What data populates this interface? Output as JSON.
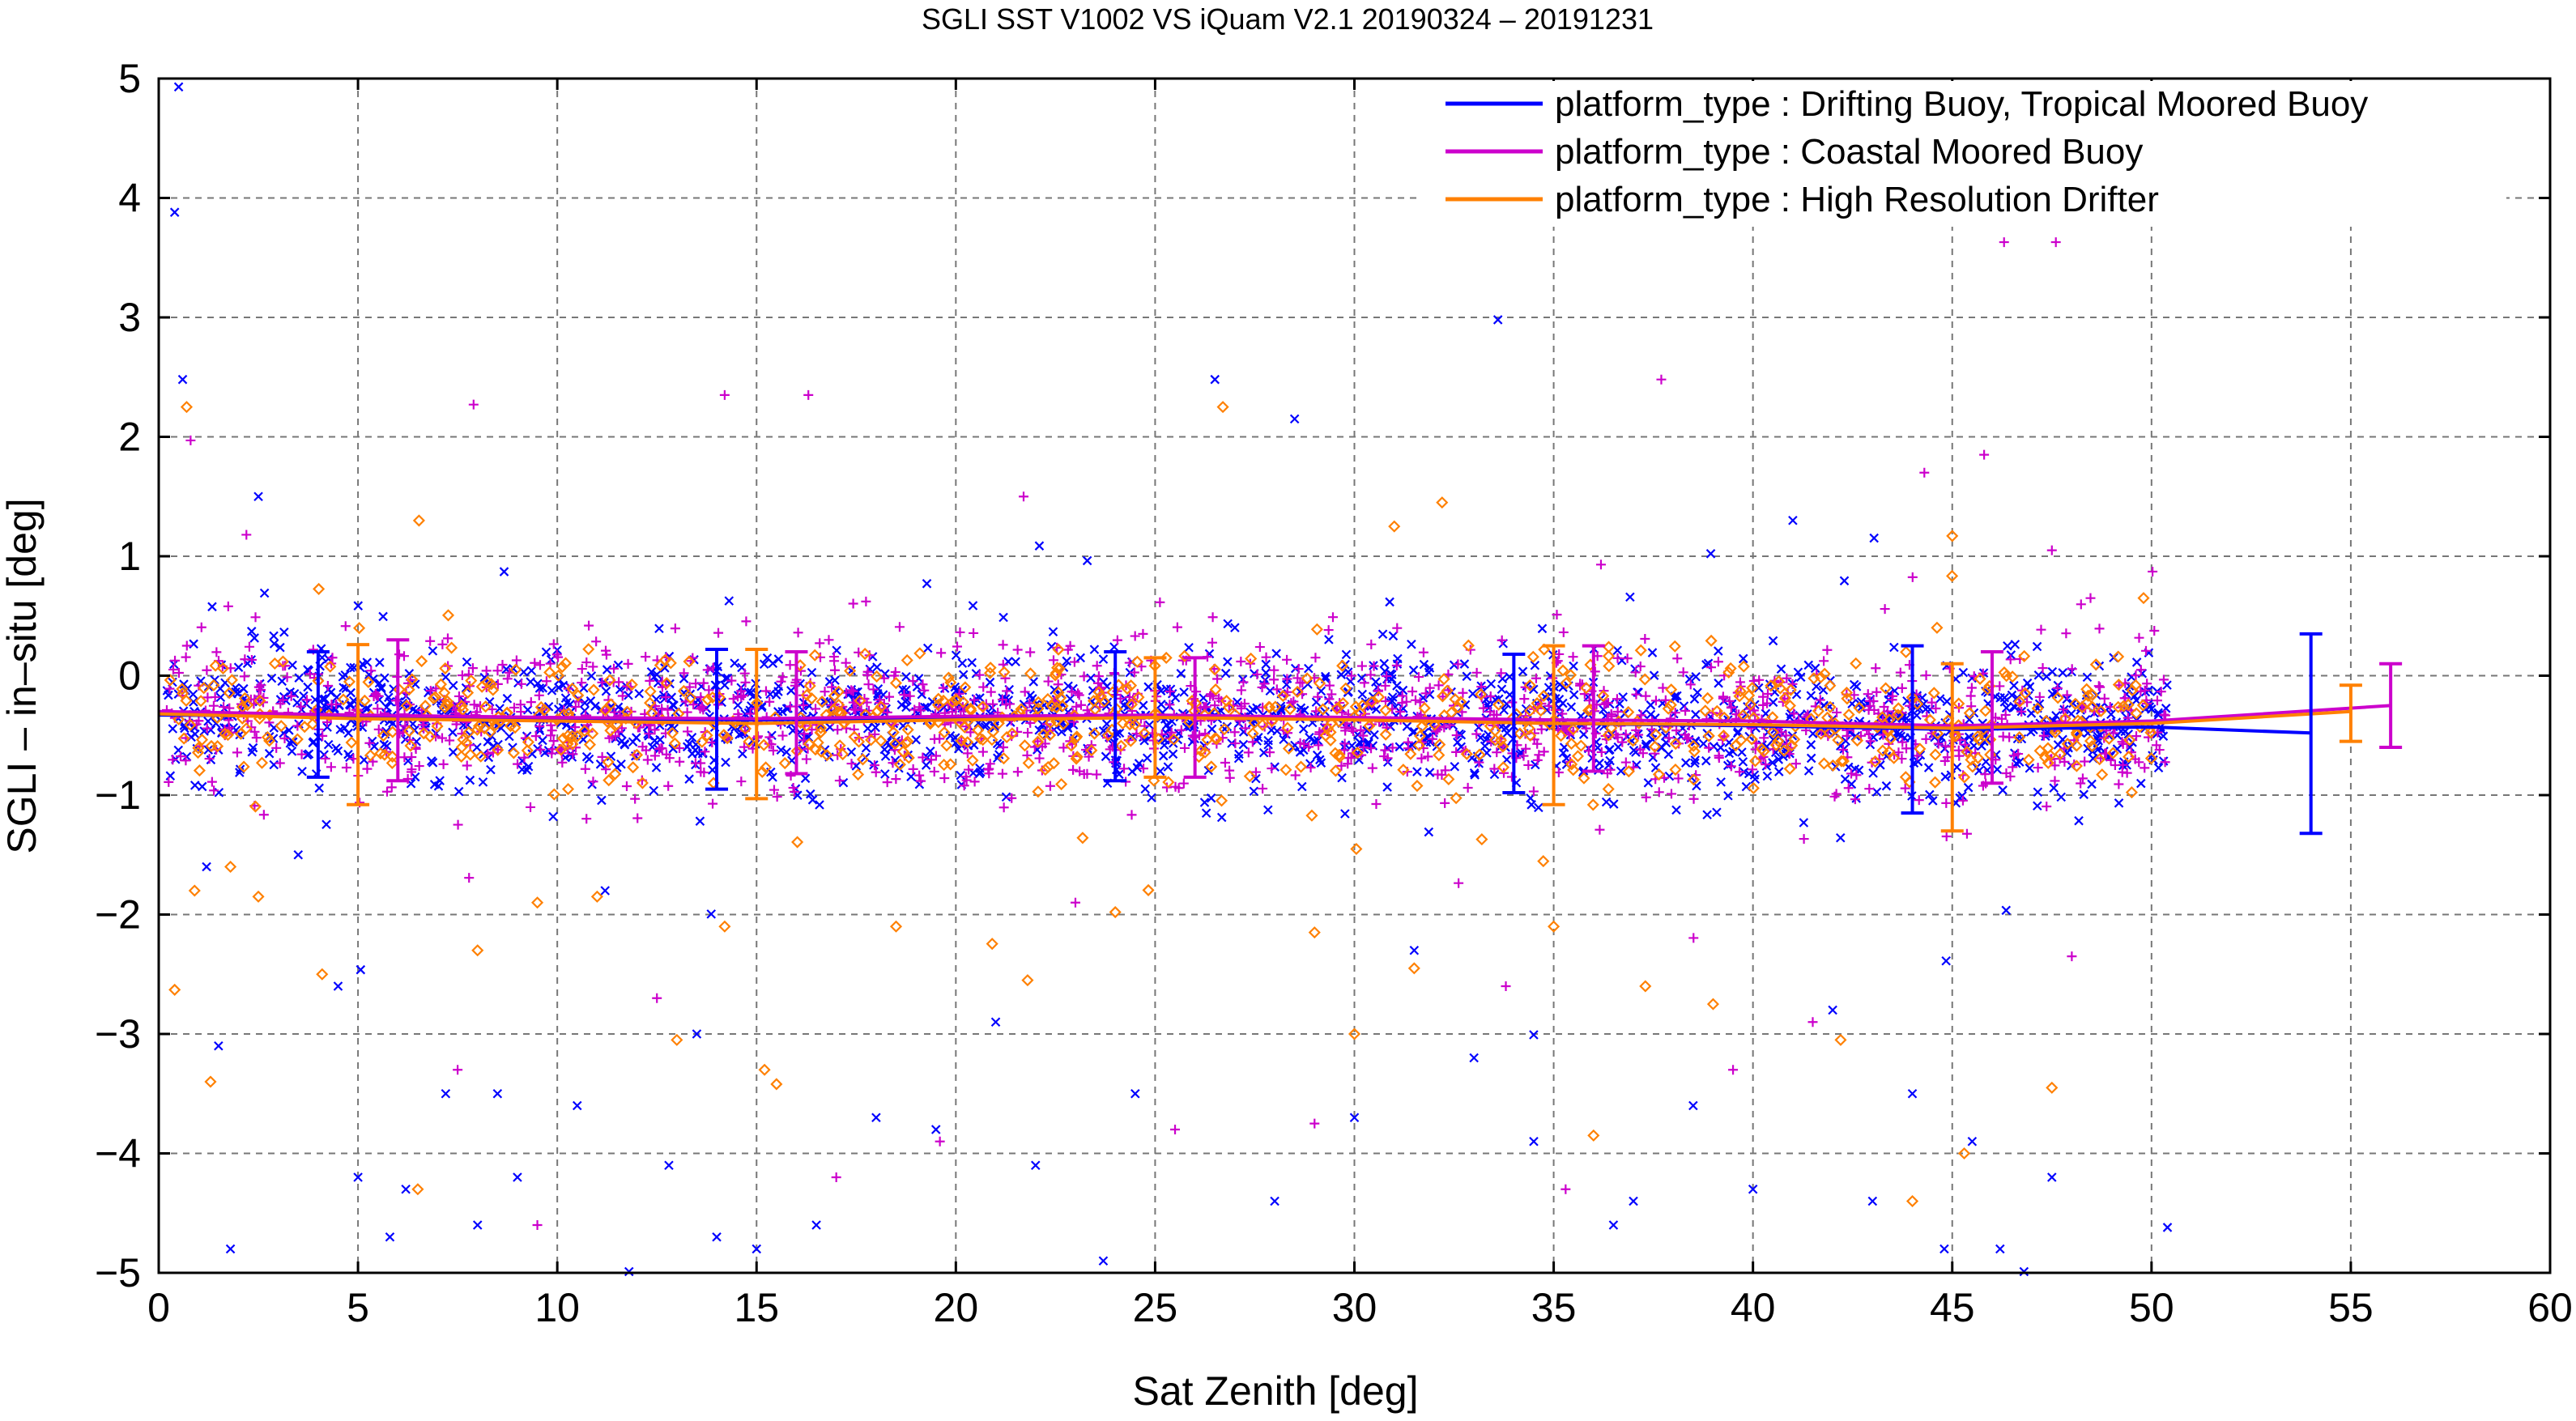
{
  "chart_data": {
    "type": "scatter",
    "title": "SGLI SST V1002 VS iQuam V2.1 20190324 – 20191231",
    "xlabel": "Sat Zenith [deg]",
    "ylabel": "SGLI – in–situ [deg]",
    "xlim": [
      0,
      60
    ],
    "ylim": [
      -5,
      5
    ],
    "x_ticks": [
      0,
      5,
      10,
      15,
      20,
      25,
      30,
      35,
      40,
      45,
      50,
      55,
      60
    ],
    "y_ticks": [
      -5,
      -4,
      -3,
      -2,
      -1,
      0,
      1,
      2,
      3,
      4,
      5
    ],
    "x_tick_labels": [
      "0",
      "5",
      "10",
      "15",
      "20",
      "25",
      "30",
      "35",
      "40",
      "45",
      "50",
      "55",
      "60"
    ],
    "y_tick_labels": [
      "−5",
      "−4",
      "−3",
      "−2",
      "−1",
      "0",
      "1",
      "2",
      "3",
      "4",
      "5"
    ],
    "grid": true,
    "legend_position": "top-right",
    "series": [
      {
        "name": "platform_type : Drifting Buoy, Tropical Moored Buoy",
        "color": "#0000ff",
        "marker": "x",
        "mean_line": {
          "x": [
            0,
            5,
            10,
            15,
            20,
            25,
            30,
            35,
            40,
            45,
            50,
            54
          ],
          "y": [
            -0.33,
            -0.34,
            -0.36,
            -0.37,
            -0.35,
            -0.34,
            -0.36,
            -0.4,
            -0.42,
            -0.45,
            -0.43,
            -0.48
          ]
        },
        "error_bars": [
          {
            "x": 4,
            "mean": -0.35,
            "low": -0.85,
            "high": 0.2
          },
          {
            "x": 14,
            "mean": -0.37,
            "low": -0.95,
            "high": 0.22
          },
          {
            "x": 24,
            "mean": -0.34,
            "low": -0.88,
            "high": 0.2
          },
          {
            "x": 34,
            "mean": -0.4,
            "low": -0.98,
            "high": 0.18
          },
          {
            "x": 44,
            "mean": -0.45,
            "low": -1.15,
            "high": 0.25
          },
          {
            "x": 54,
            "mean": -0.48,
            "low": -1.32,
            "high": 0.35
          }
        ],
        "outliers": [
          {
            "x": 0.5,
            "y": 4.93
          },
          {
            "x": 0.4,
            "y": 3.88
          },
          {
            "x": 0.6,
            "y": 2.48
          },
          {
            "x": 1.2,
            "y": -1.6
          },
          {
            "x": 1.5,
            "y": -3.1
          },
          {
            "x": 1.8,
            "y": -4.8
          },
          {
            "x": 2.5,
            "y": 1.5
          },
          {
            "x": 3.5,
            "y": -1.5
          },
          {
            "x": 4.5,
            "y": -2.6
          },
          {
            "x": 5,
            "y": -4.2
          },
          {
            "x": 5.8,
            "y": -4.7
          },
          {
            "x": 6.2,
            "y": -4.3
          },
          {
            "x": 7.2,
            "y": -3.5
          },
          {
            "x": 8,
            "y": -4.6
          },
          {
            "x": 8.5,
            "y": -3.5
          },
          {
            "x": 9,
            "y": -4.2
          },
          {
            "x": 10.5,
            "y": -3.6
          },
          {
            "x": 11.2,
            "y": -1.8
          },
          {
            "x": 11.8,
            "y": -4.99
          },
          {
            "x": 12.8,
            "y": -4.1
          },
          {
            "x": 13.5,
            "y": -3.0
          },
          {
            "x": 14,
            "y": -4.7
          },
          {
            "x": 15,
            "y": -4.8
          },
          {
            "x": 16.5,
            "y": -4.6
          },
          {
            "x": 18,
            "y": -3.7
          },
          {
            "x": 19.5,
            "y": -3.8
          },
          {
            "x": 21,
            "y": -2.9
          },
          {
            "x": 22,
            "y": -4.1
          },
          {
            "x": 23.7,
            "y": -4.9
          },
          {
            "x": 24.5,
            "y": -3.5
          },
          {
            "x": 26.5,
            "y": 2.48
          },
          {
            "x": 28,
            "y": -4.4
          },
          {
            "x": 28.5,
            "y": 2.15
          },
          {
            "x": 30,
            "y": -3.7
          },
          {
            "x": 31.5,
            "y": -2.3
          },
          {
            "x": 33,
            "y": -3.2
          },
          {
            "x": 33.6,
            "y": 2.98
          },
          {
            "x": 34.5,
            "y": -3.9
          },
          {
            "x": 36.5,
            "y": -4.6
          },
          {
            "x": 37,
            "y": -4.4
          },
          {
            "x": 38.5,
            "y": -3.6
          },
          {
            "x": 40,
            "y": -4.3
          },
          {
            "x": 41,
            "y": 1.3
          },
          {
            "x": 42,
            "y": -2.8
          },
          {
            "x": 43,
            "y": -4.4
          },
          {
            "x": 44,
            "y": -3.5
          },
          {
            "x": 44.8,
            "y": -4.8
          },
          {
            "x": 45.5,
            "y": -3.9
          },
          {
            "x": 46.2,
            "y": -4.8
          },
          {
            "x": 46.8,
            "y": -4.99
          },
          {
            "x": 47.5,
            "y": -4.2
          },
          {
            "x": 50.4,
            "y": -4.62
          }
        ]
      },
      {
        "name": "platform_type : Coastal Moored Buoy",
        "color": "#cc00cc",
        "marker": "+",
        "mean_line": {
          "x": [
            0,
            5,
            10,
            15,
            20,
            25,
            30,
            35,
            40,
            45,
            50,
            56
          ],
          "y": [
            -0.3,
            -0.33,
            -0.35,
            -0.36,
            -0.34,
            -0.33,
            -0.35,
            -0.37,
            -0.38,
            -0.42,
            -0.38,
            -0.25
          ]
        },
        "error_bars": [
          {
            "x": 6,
            "mean": -0.33,
            "low": -0.88,
            "high": 0.3
          },
          {
            "x": 16,
            "mean": -0.36,
            "low": -0.82,
            "high": 0.2
          },
          {
            "x": 26,
            "mean": -0.33,
            "low": -0.85,
            "high": 0.15
          },
          {
            "x": 36,
            "mean": -0.37,
            "low": -0.8,
            "high": 0.25
          },
          {
            "x": 46,
            "mean": -0.42,
            "low": -0.9,
            "high": 0.2
          },
          {
            "x": 56,
            "mean": -0.25,
            "low": -0.6,
            "high": 0.1
          }
        ],
        "outliers": [
          {
            "x": 0.8,
            "y": 1.97
          },
          {
            "x": 2.2,
            "y": 1.18
          },
          {
            "x": 7.9,
            "y": 2.27
          },
          {
            "x": 14.2,
            "y": 2.35
          },
          {
            "x": 16.3,
            "y": 2.35
          },
          {
            "x": 21.7,
            "y": 1.5
          },
          {
            "x": 37.7,
            "y": 2.48
          },
          {
            "x": 44.3,
            "y": 1.7
          },
          {
            "x": 46.3,
            "y": 3.63
          },
          {
            "x": 47.6,
            "y": 3.63
          },
          {
            "x": 45.8,
            "y": 1.85
          },
          {
            "x": 47.5,
            "y": 1.05
          },
          {
            "x": 7.5,
            "y": -3.3
          },
          {
            "x": 9.5,
            "y": -4.6
          },
          {
            "x": 12.5,
            "y": -2.7
          },
          {
            "x": 17,
            "y": -4.2
          },
          {
            "x": 19.6,
            "y": -3.9
          },
          {
            "x": 23,
            "y": -1.9
          },
          {
            "x": 25.5,
            "y": -3.8
          },
          {
            "x": 29,
            "y": -3.75
          },
          {
            "x": 33.8,
            "y": -2.6
          },
          {
            "x": 35.3,
            "y": -4.3
          },
          {
            "x": 39.5,
            "y": -3.3
          },
          {
            "x": 41.5,
            "y": -2.9
          },
          {
            "x": 48,
            "y": -2.35
          }
        ]
      },
      {
        "name": "platform_type : High Resolution Drifter",
        "color": "#ff8000",
        "marker": "diamond",
        "mean_line": {
          "x": [
            0,
            5,
            10,
            15,
            20,
            25,
            30,
            35,
            40,
            45,
            50,
            55
          ],
          "y": [
            -0.32,
            -0.36,
            -0.38,
            -0.4,
            -0.37,
            -0.35,
            -0.37,
            -0.4,
            -0.41,
            -0.44,
            -0.4,
            -0.3
          ]
        },
        "error_bars": [
          {
            "x": 5,
            "mean": -0.36,
            "low": -1.08,
            "high": 0.26
          },
          {
            "x": 15,
            "mean": -0.4,
            "low": -1.03,
            "high": 0.22
          },
          {
            "x": 25,
            "mean": -0.35,
            "low": -0.85,
            "high": 0.15
          },
          {
            "x": 35,
            "mean": -0.4,
            "low": -1.08,
            "high": 0.25
          },
          {
            "x": 45,
            "mean": -0.44,
            "low": -1.3,
            "high": 0.1
          },
          {
            "x": 55,
            "mean": -0.3,
            "low": -0.55,
            "high": -0.08
          }
        ],
        "outliers": [
          {
            "x": 0.7,
            "y": 2.25
          },
          {
            "x": 26.7,
            "y": 2.25
          },
          {
            "x": 0.4,
            "y": -2.63
          },
          {
            "x": 0.9,
            "y": -1.8
          },
          {
            "x": 1.3,
            "y": -3.4
          },
          {
            "x": 1.8,
            "y": -1.6
          },
          {
            "x": 2.5,
            "y": -1.85
          },
          {
            "x": 4.1,
            "y": -2.5
          },
          {
            "x": 6.5,
            "y": -4.3
          },
          {
            "x": 8,
            "y": -2.3
          },
          {
            "x": 9.5,
            "y": -1.9
          },
          {
            "x": 11,
            "y": -1.85
          },
          {
            "x": 13,
            "y": -3.05
          },
          {
            "x": 14.2,
            "y": -2.1
          },
          {
            "x": 15.2,
            "y": -3.3
          },
          {
            "x": 15.5,
            "y": -3.42
          },
          {
            "x": 18.5,
            "y": -2.1
          },
          {
            "x": 21.8,
            "y": -2.55
          },
          {
            "x": 24,
            "y": -1.98
          },
          {
            "x": 29,
            "y": -2.15
          },
          {
            "x": 30,
            "y": -3.0
          },
          {
            "x": 31.5,
            "y": -2.45
          },
          {
            "x": 35,
            "y": -2.1
          },
          {
            "x": 36,
            "y": -3.85
          },
          {
            "x": 37.3,
            "y": -2.6
          },
          {
            "x": 39,
            "y": -2.75
          },
          {
            "x": 42.2,
            "y": -3.05
          },
          {
            "x": 44,
            "y": -4.4
          },
          {
            "x": 45.3,
            "y": -4.0
          },
          {
            "x": 45,
            "y": 1.17
          },
          {
            "x": 47.5,
            "y": -3.45
          },
          {
            "x": 49.8,
            "y": 0.65
          },
          {
            "x": 32.2,
            "y": 1.45
          },
          {
            "x": 31,
            "y": 1.25
          }
        ]
      }
    ]
  }
}
